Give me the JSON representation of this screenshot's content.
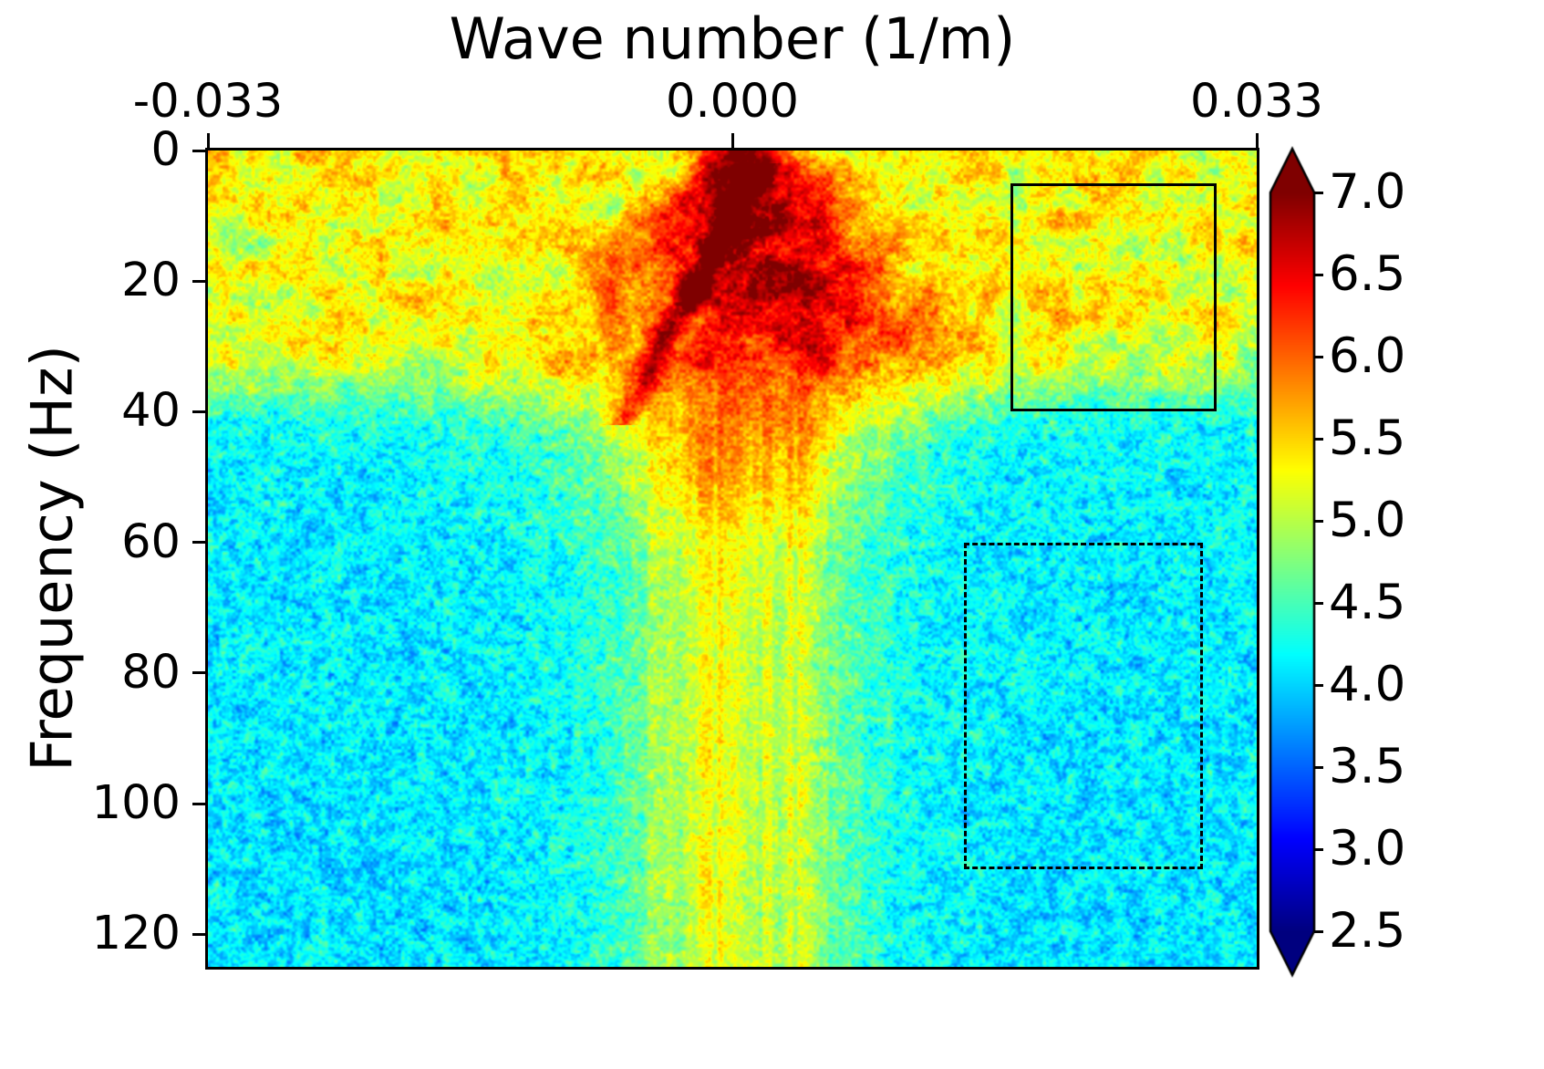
{
  "figure": {
    "background": "#ffffff",
    "text_color": "#000000",
    "frame_color": "#000000"
  },
  "chart_data": {
    "type": "heatmap",
    "title": "",
    "xlabel": "Wave number (1/m)",
    "ylabel": "Frequency (Hz)",
    "x_axis": {
      "min": -0.033,
      "max": 0.033,
      "tick_labels": [
        "-0.033",
        "0.000",
        "0.033"
      ],
      "tick_values": [
        -0.033,
        0,
        0.033
      ],
      "label_position": "top"
    },
    "y_axis": {
      "min": 0,
      "max": 125,
      "tick_labels": [
        "0",
        "20",
        "40",
        "60",
        "80",
        "100",
        "120"
      ],
      "tick_values": [
        0,
        20,
        40,
        60,
        80,
        100,
        120
      ],
      "direction": "down"
    },
    "colorbar": {
      "vmin": 2.5,
      "vmax": 7.0,
      "tick_labels": [
        "7.0",
        "6.5",
        "6.0",
        "5.5",
        "5.0",
        "4.5",
        "4.0",
        "3.5",
        "3.0",
        "2.5"
      ],
      "tick_values": [
        7.0,
        6.5,
        6.0,
        5.5,
        5.0,
        4.5,
        4.0,
        3.5,
        3.0,
        2.5
      ],
      "colormap": "jet",
      "extend": "both",
      "over_color": "#7f0000",
      "under_color": "#00007f"
    },
    "annotations": [
      {
        "type": "rect",
        "line_style": "solid",
        "k_min": 0.0175,
        "k_max": 0.0305,
        "f_min": 5,
        "f_max": 40,
        "color": "#000000"
      },
      {
        "type": "rect",
        "line_style": "dashed",
        "k_min": 0.0146,
        "k_max": 0.0296,
        "f_min": 60,
        "f_max": 110,
        "color": "#000000"
      }
    ],
    "features": [
      {
        "name": "dispersion-cone",
        "description": "High-amplitude red/dark-red cone with apex near k=0 at 0 Hz widening to about +/-0.012 1/m at 40 Hz, peak amplitude >= 7.0"
      },
      {
        "name": "dark-streak",
        "description": "Dark red linear dispersion streak running from about (0.002 1/m, 2 Hz) down-left to (-0.007 1/m, 40 Hz)"
      },
      {
        "name": "surface-wave-band",
        "description": "Mottled yellow/orange horizontal band, amplitude about 5.4-6.0, covering 0-38 Hz at all wavenumbers"
      },
      {
        "name": "central-column",
        "description": "Yellow vertically-striped column, |k| < ~0.008 1/m, amplitude about 5.3, extending from 40 Hz to the bottom of the plot"
      },
      {
        "name": "background-noise",
        "description": "Cyan/blue speckled background, amplitude about 3.6-4.7, above 40 Hz away from the central column"
      },
      {
        "name": "solid-roi",
        "description": "Solid black rectangle marking the surface-wave band region at positive wavenumbers (5-40 Hz)"
      },
      {
        "name": "dashed-roi",
        "description": "Dashed black rectangle marking the background noise region at positive wavenumbers (60-110 Hz)"
      }
    ],
    "field_model": {
      "base_level": 4.18,
      "base_tilt": -0.1,
      "band_amp": 1.22,
      "band_edge_hz": 37,
      "band_edge_width": 2.6,
      "hot_amp": 1.95,
      "hot_k": 0.0008,
      "hot_width0": 0.0022,
      "hot_width_slope": 0.00028,
      "hot_fcut": 46,
      "streak_amp": 0.95,
      "streak_k0": 0.0018,
      "streak_slope": -0.00022,
      "streak_width": 0.0009,
      "streak_f0": 2,
      "streak_f1": 42,
      "col_amp": 1.3,
      "col_k": 0.0005,
      "col_width": 0.0075,
      "col_fstart": 36,
      "glow_amp": 0.55,
      "glow_f": 46,
      "glow_fw": 11,
      "glow_kw": 0.0115,
      "right_lobe_amp": 0.45,
      "right_lobe_k": 0.007,
      "right_lobe_kw": 0.006,
      "right_lobe_f": 22,
      "right_lobe_fw": 14,
      "noise_amp": 0.45
    }
  }
}
